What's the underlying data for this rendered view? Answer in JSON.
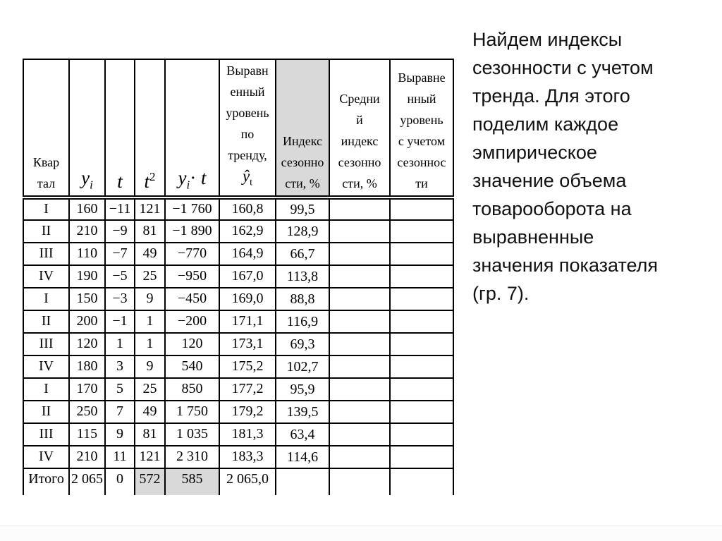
{
  "page": {
    "background": "#ffffff",
    "highlight_color": "#d9d9d9"
  },
  "table": {
    "header": {
      "col_kvartal": "Квар\nтал",
      "col_yi": {
        "base": "y",
        "sub": "i"
      },
      "col_t": {
        "base": "t"
      },
      "col_t2": {
        "base": "t",
        "sup": "2"
      },
      "col_yit": {
        "base": "y",
        "sub": "i",
        "dot": "·",
        "second": "t"
      },
      "col_trend": {
        "lines": "Выравн\nенный\nуровень\nпо\nтренду,",
        "symbol": "ŷ",
        "symbol_sub": "t"
      },
      "col_index": "Индекс\nсезонно\nсти, %",
      "col_avg_index": "Средни\nй\nиндекс\nсезонно\nсти, %",
      "col_adjusted": "Выравне\nнный\nуровень\nс учетом\nсезоннос\nти"
    },
    "rows": [
      {
        "quarter": "I",
        "yi": "160",
        "t": "−11",
        "t2": "121",
        "yit": "−1 760",
        "trend": "160,8",
        "index": "99,5",
        "avg_index": "",
        "adjusted": ""
      },
      {
        "quarter": "II",
        "yi": "210",
        "t": "−9",
        "t2": "81",
        "yit": "−1 890",
        "trend": "162,9",
        "index": "128,9",
        "avg_index": "",
        "adjusted": ""
      },
      {
        "quarter": "III",
        "yi": "110",
        "t": "−7",
        "t2": "49",
        "yit": "−770",
        "trend": "164,9",
        "index": "66,7",
        "avg_index": "",
        "adjusted": ""
      },
      {
        "quarter": "IV",
        "yi": "190",
        "t": "−5",
        "t2": "25",
        "yit": "−950",
        "trend": "167,0",
        "index": "113,8",
        "avg_index": "",
        "adjusted": ""
      },
      {
        "quarter": "I",
        "yi": "150",
        "t": "−3",
        "t2": "9",
        "yit": "−450",
        "trend": "169,0",
        "index": "88,8",
        "avg_index": "",
        "adjusted": ""
      },
      {
        "quarter": "II",
        "yi": "200",
        "t": "−1",
        "t2": "1",
        "yit": "−200",
        "trend": "171,1",
        "index": "116,9",
        "avg_index": "",
        "adjusted": ""
      },
      {
        "quarter": "III",
        "yi": "120",
        "t": "1",
        "t2": "1",
        "yit": "120",
        "trend": "173,1",
        "index": "69,3",
        "avg_index": "",
        "adjusted": ""
      },
      {
        "quarter": "IV",
        "yi": "180",
        "t": "3",
        "t2": "9",
        "yit": "540",
        "trend": "175,2",
        "index": "102,7",
        "avg_index": "",
        "adjusted": ""
      },
      {
        "quarter": "I",
        "yi": "170",
        "t": "5",
        "t2": "25",
        "yit": "850",
        "trend": "177,2",
        "index": "95,9",
        "avg_index": "",
        "adjusted": ""
      },
      {
        "quarter": "II",
        "yi": "250",
        "t": "7",
        "t2": "49",
        "yit": "1 750",
        "trend": "179,2",
        "index": "139,5",
        "avg_index": "",
        "adjusted": ""
      },
      {
        "quarter": "III",
        "yi": "115",
        "t": "9",
        "t2": "81",
        "yit": "1 035",
        "trend": "181,3",
        "index": "63,4",
        "avg_index": "",
        "adjusted": ""
      },
      {
        "quarter": "IV",
        "yi": "210",
        "t": "11",
        "t2": "121",
        "yit": "2 310",
        "trend": "183,3",
        "index": "114,6",
        "avg_index": "",
        "adjusted": ""
      }
    ],
    "total": {
      "label": "Итого",
      "yi": "2 065",
      "t": "0",
      "t2": "572",
      "yit": "585",
      "trend": "2 065,0",
      "index": "",
      "avg_index": "",
      "adjusted": ""
    }
  },
  "note": {
    "lines": [
      "Найдем индексы",
      "сезонности с учетом",
      "тренда. Для этого",
      "поделим каждое",
      "эмпирическое",
      "значение объема",
      "товарооборота на",
      "выравненные",
      "значения показателя",
      "(гр. 7)."
    ]
  }
}
